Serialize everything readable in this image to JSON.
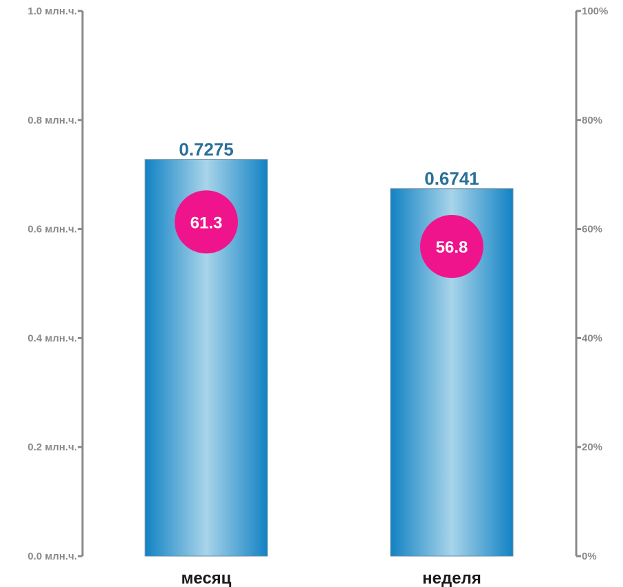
{
  "chart_data": {
    "type": "bar",
    "categories": [
      "месяц",
      "неделя"
    ],
    "values": [
      0.7275,
      0.6741
    ],
    "value_labels": [
      "0.7275",
      "0.6741"
    ],
    "secondary_values": [
      61.3,
      56.8
    ],
    "secondary_labels": [
      "61.3",
      "56.8"
    ],
    "left_axis": {
      "ylim": [
        0,
        1.0
      ],
      "ticks": [
        0,
        0.2,
        0.4,
        0.6,
        0.8,
        1.0
      ],
      "tick_labels": [
        "0.0 млн.ч.",
        "0.2 млн.ч.",
        "0.4 млн.ч.",
        "0.6 млн.ч.",
        "0.8 млн.ч.",
        "1.0 млн.ч."
      ]
    },
    "right_axis": {
      "ylim": [
        0,
        100
      ],
      "ticks": [
        0,
        20,
        40,
        60,
        80,
        100
      ],
      "tick_labels": [
        "0%",
        "20%",
        "40%",
        "60%",
        "80%",
        "100%"
      ]
    },
    "title": "",
    "xlabel": "",
    "ylabel": "",
    "grid": false,
    "legend": "none",
    "colors": {
      "bar_edge": "#1282c4",
      "bar_center": "#a8d4ea",
      "value_label": "#2a6f9a",
      "circle": "#f0148c",
      "axis": "#8a8a8a"
    }
  }
}
